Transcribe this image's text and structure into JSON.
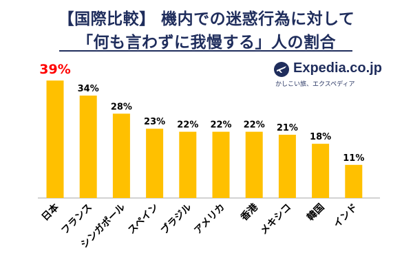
{
  "header": {
    "title_line1": "【国際比較】 機内での迷惑行為に対して",
    "title_line2": "「何も言わずに我慢する」人の割合"
  },
  "logo": {
    "name": "Expedia.co.jp",
    "tagline": "かしこい旅、エクスペディア",
    "icon": "airplane-globe-icon"
  },
  "colors": {
    "bar": "#FFC000",
    "highlight_label": "#FF0000",
    "text": "#1F2D5C"
  },
  "chart_data": {
    "type": "bar",
    "categories": [
      "日本",
      "フランス",
      "シンガポール",
      "スペイン",
      "ブラジル",
      "アメリカ",
      "香港",
      "メキシコ",
      "韓国",
      "インド"
    ],
    "values": [
      39,
      34,
      28,
      23,
      22,
      22,
      22,
      21,
      18,
      11
    ],
    "data_labels": [
      "39%",
      "34%",
      "28%",
      "23%",
      "22%",
      "22%",
      "22%",
      "21%",
      "18%",
      "11%"
    ],
    "unit": "%",
    "highlight_index": 0,
    "ylim": [
      0,
      42
    ],
    "grid": false,
    "legend": "none"
  }
}
